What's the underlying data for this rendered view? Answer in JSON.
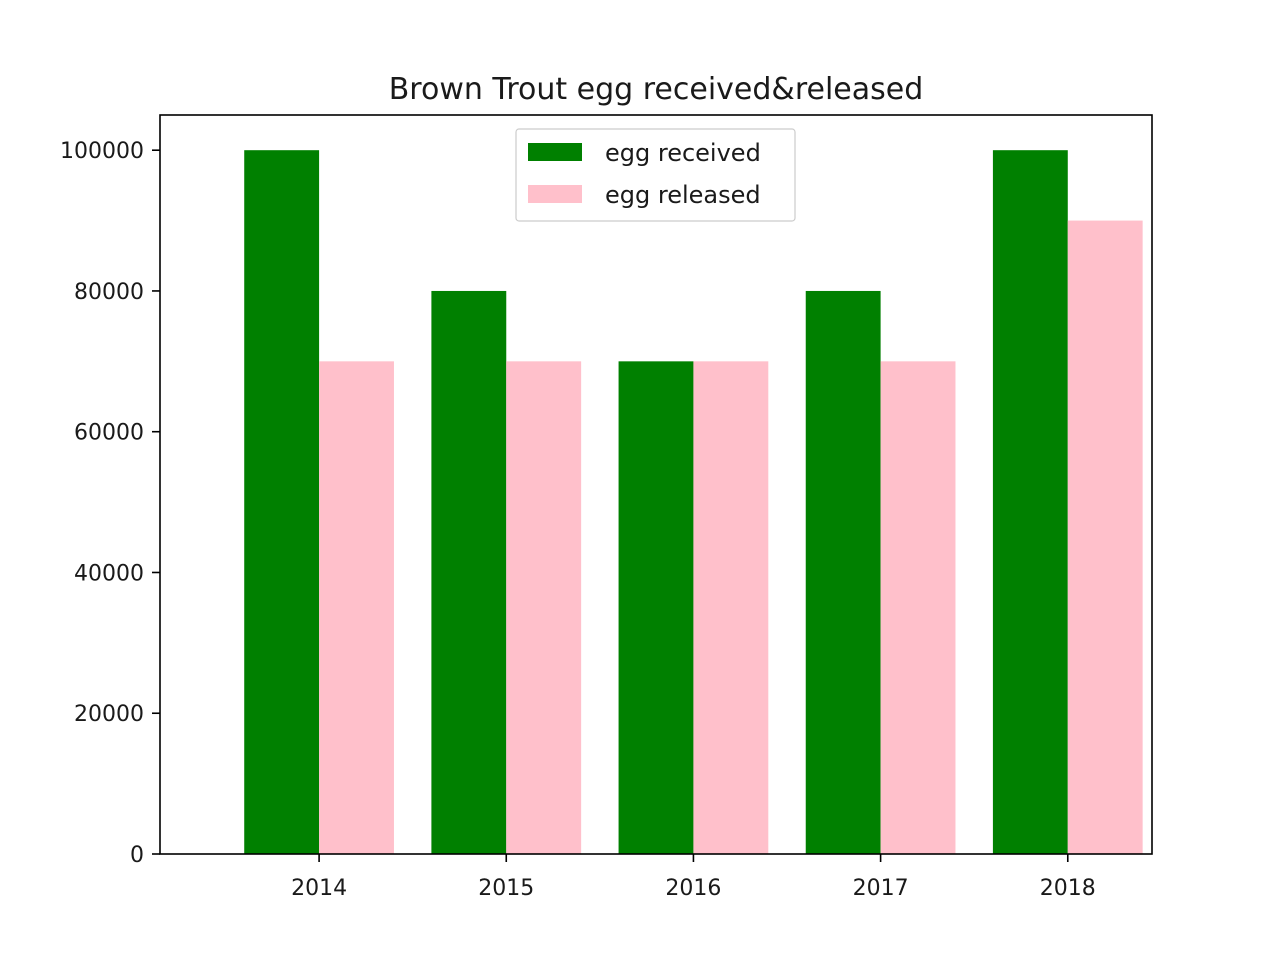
{
  "chart_data": {
    "type": "bar",
    "title": "Brown Trout egg received&released",
    "xlabel": "",
    "ylabel": "",
    "categories": [
      "2014",
      "2015",
      "2016",
      "2017",
      "2018"
    ],
    "series": [
      {
        "name": "egg received",
        "color": "#008000",
        "values": [
          100000,
          80000,
          70000,
          80000,
          100000
        ]
      },
      {
        "name": "egg released",
        "color": "#ffc0cb",
        "values": [
          70000,
          70000,
          70000,
          70000,
          90000
        ]
      }
    ],
    "ylim": [
      0,
      105000
    ],
    "yticks": [
      0,
      20000,
      40000,
      60000,
      80000,
      100000
    ],
    "ytick_labels": [
      "0",
      "20000",
      "40000",
      "60000",
      "80000",
      "100000"
    ],
    "grid": false,
    "legend_position": "top-center"
  }
}
